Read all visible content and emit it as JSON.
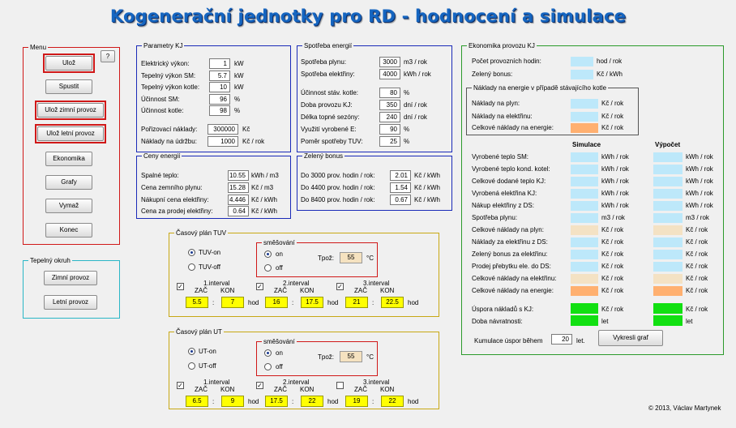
{
  "title": "Kogenerační jednotky pro RD - hodnocení a simulace",
  "menu": {
    "legend": "Menu",
    "help": "?",
    "uloz": "Ulož",
    "spustit": "Spustit",
    "uloz_zimni": "Ulož zimní provoz",
    "uloz_letni": "Ulož letní provoz",
    "ekonomika": "Ekonomika",
    "grafy": "Grafy",
    "vymaz": "Vymaž",
    "konec": "Konec"
  },
  "tepelny_okruh": {
    "legend": "Tepelný okruh",
    "zimni": "Zimní provoz",
    "letni": "Letní provoz"
  },
  "parametry": {
    "legend": "Parametry KJ",
    "rows": [
      {
        "label": "Elektrický výkon:",
        "value": "1",
        "unit": "kW"
      },
      {
        "label": "Tepelný výkon SM:",
        "value": "5.7",
        "unit": "kW"
      },
      {
        "label": "Tepelný výkon kotle:",
        "value": "10",
        "unit": "kW"
      },
      {
        "label": "Účinnost SM:",
        "value": "96",
        "unit": "%"
      },
      {
        "label": "Účinnost kotle:",
        "value": "98",
        "unit": "%"
      },
      {
        "label": "Pořizovací náklady:",
        "value": "300000",
        "unit": "Kč"
      },
      {
        "label": "Náklady na údržbu:",
        "value": "1000",
        "unit": "Kč / rok"
      }
    ]
  },
  "spotreba": {
    "legend": "Spotřeba energií",
    "rows": [
      {
        "label": "Spotřeba plynu:",
        "value": "3000",
        "unit": "m3 / rok"
      },
      {
        "label": "Spotřeba elektřiny:",
        "value": "4000",
        "unit": "kWh / rok"
      },
      {
        "label": "Účinnost stáv. kotle:",
        "value": "80",
        "unit": "%"
      },
      {
        "label": "Doba provozu KJ:",
        "value": "350",
        "unit": "dní / rok"
      },
      {
        "label": "Délka topné sezóny:",
        "value": "240",
        "unit": "dní / rok"
      },
      {
        "label": "Využití vyrobené E:",
        "value": "90",
        "unit": "%"
      },
      {
        "label": "Poměr spotřeby TUV:",
        "value": "25",
        "unit": "%"
      }
    ]
  },
  "ceny": {
    "legend": "Ceny energií",
    "rows": [
      {
        "label": "Spalné teplo:",
        "value": "10.55",
        "unit": "kWh / m3"
      },
      {
        "label": "Cena zemního plynu:",
        "value": "15.28",
        "unit": "Kč / m3"
      },
      {
        "label": "Nákupní cena elektřiny:",
        "value": "4.446",
        "unit": "Kč / kWh"
      },
      {
        "label": "Cena za prodej elektřiny:",
        "value": "0.64",
        "unit": "Kč / kWh"
      }
    ]
  },
  "zeleny": {
    "legend": "Zelený bonus",
    "rows": [
      {
        "label": "Do 3000 prov. hodin / rok:",
        "value": "2.01",
        "unit": "Kč / kWh"
      },
      {
        "label": "Do 4400 prov. hodin / rok:",
        "value": "1.54",
        "unit": "Kč / kWh"
      },
      {
        "label": "Do 8400 prov. hodin / rok:",
        "value": "0.67",
        "unit": "Kč / kWh"
      }
    ]
  },
  "tuv": {
    "legend": "Časový plán TUV",
    "on": "TUV-on",
    "off": "TUV-off",
    "smes_legend": "směšování",
    "smes_on": "on",
    "smes_off": "off",
    "tpoz_label": "Tpož:",
    "tpoz": "55",
    "tpoz_unit": "°C",
    "intervals": [
      {
        "label": "1.interval",
        "zac": "5.5",
        "kon": "7"
      },
      {
        "label": "2.interval",
        "zac": "16",
        "kon": "17.5"
      },
      {
        "label": "3.interval",
        "zac": "21",
        "kon": "22.5"
      }
    ],
    "zac": "ZAČ",
    "kon": "KON",
    "hod": "hod",
    "colon": ":"
  },
  "ut": {
    "legend": "Časový plán UT",
    "on": "UT-on",
    "off": "UT-off",
    "smes_legend": "směšování",
    "smes_on": "on",
    "smes_off": "off",
    "tpoz_label": "Tpož:",
    "tpoz": "55",
    "tpoz_unit": "°C",
    "intervals": [
      {
        "label": "1.interval",
        "zac": "6.5",
        "kon": "9"
      },
      {
        "label": "2.interval",
        "zac": "17.5",
        "kon": "22"
      },
      {
        "label": "3.interval",
        "zac": "19",
        "kon": "22"
      }
    ],
    "zac": "ZAČ",
    "kon": "KON",
    "hod": "hod",
    "colon": ":"
  },
  "ekonomika": {
    "legend": "Ekonomika provozu KJ",
    "pocet_hodin": "Počet provozních hodin:",
    "pocet_unit": "hod / rok",
    "zeleny_bonus": "Zelený bonus:",
    "zeleny_unit": "Kč / kWh",
    "naklady_legend": "Náklady na energie v případě stávajícího kotle",
    "n_plyn": "Náklady na plyn:",
    "n_elek": "Náklady na elektřinu:",
    "n_celk": "Celkové náklady na energie:",
    "kc_rok": "Kč / rok",
    "col_sim": "Simulace",
    "col_vyp": "Výpočet",
    "rows": [
      {
        "label": "Vyrobené teplo SM:",
        "u1": "kWh / rok",
        "u2": "kWh / rok",
        "c": "blue"
      },
      {
        "label": "Vyrobené teplo kond. kotel:",
        "u1": "kWh / rok",
        "u2": "kWh / rok",
        "c": "blue"
      },
      {
        "label": "Celkové dodané teplo KJ:",
        "u1": "kWh / rok",
        "u2": "kWh / rok",
        "c": "blue"
      },
      {
        "label": "Vyrobená elektřina KJ:",
        "u1": "kWh / rok",
        "u2": "kWh / rok",
        "c": "blue"
      },
      {
        "label": "Nákup elektřiny z DS:",
        "u1": "kWh / rok",
        "u2": "kWh / rok",
        "c": "blue"
      },
      {
        "label": "Spotřeba plynu:",
        "u1": "m3 / rok",
        "u2": "m3 / rok",
        "c": "blue"
      },
      {
        "label": "Celkové náklady na plyn:",
        "u1": "Kč / rok",
        "u2": "Kč / rok",
        "c": "tan"
      },
      {
        "label": "Náklady za elektřinu z DS:",
        "u1": "Kč / rok",
        "u2": "Kč / rok",
        "c": "blue"
      },
      {
        "label": "Zelený bonus za elektřinu:",
        "u1": "Kč / rok",
        "u2": "Kč / rok",
        "c": "blue"
      },
      {
        "label": "Prodej přebytku ele. do DS:",
        "u1": "Kč / rok",
        "u2": "Kč / rok",
        "c": "blue"
      },
      {
        "label": "Celkové náklady na elektřinu:",
        "u1": "Kč / rok",
        "u2": "Kč / rok",
        "c": "tan"
      },
      {
        "label": "Celkové náklady na energie:",
        "u1": "Kč / rok",
        "u2": "Kč / rok",
        "c": "orange"
      }
    ],
    "uspora": "Úspora nákladů s KJ:",
    "uspora_unit": "Kč / rok",
    "doba": "Doba návratnosti:",
    "doba_unit": "let",
    "kumulace": "Kumulace úspor během",
    "kumulace_value": "20",
    "kumulace_unit": "let.",
    "vykresli": "Vykresli graf"
  },
  "colors": {
    "blue": "#bde8fa",
    "tan": "#f4e2c4",
    "orange": "#ffb070",
    "green": "#12e012",
    "yellow": "#ffff00"
  },
  "copyright": "© 2013, Václav Martynek"
}
